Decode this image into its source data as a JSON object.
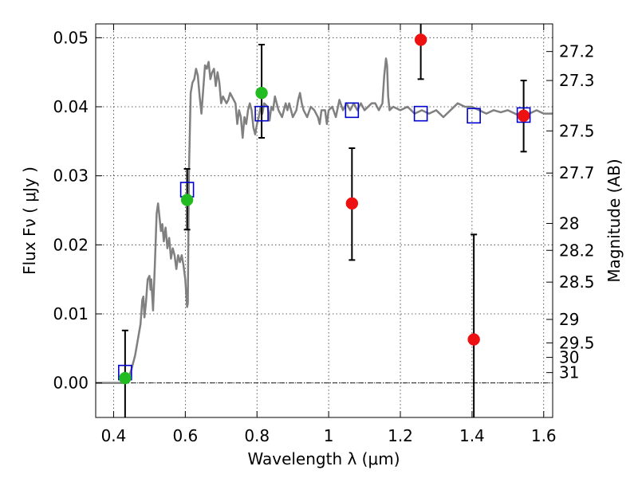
{
  "chart_data": {
    "type": "scatter",
    "xlabel": "Wavelength  λ (μm)",
    "ylabel": "Flux  Fν  ( μJy )",
    "y2label": "Magnitude (AB)",
    "xlim": [
      0.35,
      1.625
    ],
    "ylim": [
      -0.005,
      0.052
    ],
    "grid": true,
    "x_ticks": [
      0.4,
      0.6,
      0.8,
      1.0,
      1.2,
      1.4,
      1.6
    ],
    "x_tick_labels": [
      "0.4",
      "0.6",
      "0.8",
      "1",
      "1.2",
      "1.4",
      "1.6"
    ],
    "y_ticks": [
      0.0,
      0.01,
      0.02,
      0.03,
      0.04,
      0.05
    ],
    "y_tick_labels": [
      "0.00",
      "0.01",
      "0.02",
      "0.03",
      "0.04",
      "0.05"
    ],
    "y2_ticks": [
      {
        "label": "27.2",
        "flux": 0.048
      },
      {
        "label": "27.3",
        "flux": 0.0438
      },
      {
        "label": "27.5",
        "flux": 0.0365
      },
      {
        "label": "27.7",
        "flux": 0.0304
      },
      {
        "label": "28",
        "flux": 0.0231
      },
      {
        "label": "28.2",
        "flux": 0.0192
      },
      {
        "label": "28.5",
        "flux": 0.0146
      },
      {
        "label": "29",
        "flux": 0.0092
      },
      {
        "label": "29.5",
        "flux": 0.0058
      },
      {
        "label": "30",
        "flux": 0.0037
      },
      {
        "label": "31",
        "flux": 0.0015
      }
    ],
    "series": [
      {
        "kind": "spectrum",
        "color": "#808080",
        "points": [
          [
            0.35,
            0.0
          ],
          [
            0.43,
            0.0
          ],
          [
            0.44,
            0.0005
          ],
          [
            0.45,
            0.002
          ],
          [
            0.46,
            0.004
          ],
          [
            0.47,
            0.007
          ],
          [
            0.475,
            0.0085
          ],
          [
            0.48,
            0.012
          ],
          [
            0.483,
            0.0125
          ],
          [
            0.486,
            0.0095
          ],
          [
            0.49,
            0.0115
          ],
          [
            0.495,
            0.015
          ],
          [
            0.5,
            0.0155
          ],
          [
            0.503,
            0.0135
          ],
          [
            0.505,
            0.015
          ],
          [
            0.51,
            0.0105
          ],
          [
            0.515,
            0.017
          ],
          [
            0.52,
            0.0245
          ],
          [
            0.524,
            0.026
          ],
          [
            0.528,
            0.024
          ],
          [
            0.532,
            0.022
          ],
          [
            0.536,
            0.023
          ],
          [
            0.54,
            0.0205
          ],
          [
            0.545,
            0.0225
          ],
          [
            0.55,
            0.0195
          ],
          [
            0.555,
            0.021
          ],
          [
            0.56,
            0.018
          ],
          [
            0.565,
            0.0195
          ],
          [
            0.57,
            0.0185
          ],
          [
            0.575,
            0.0165
          ],
          [
            0.58,
            0.0185
          ],
          [
            0.585,
            0.0175
          ],
          [
            0.59,
            0.0185
          ],
          [
            0.595,
            0.017
          ],
          [
            0.6,
            0.015
          ],
          [
            0.603,
            0.0125
          ],
          [
            0.605,
            0.011
          ],
          [
            0.607,
            0.0115
          ],
          [
            0.61,
            0.03
          ],
          [
            0.615,
            0.042
          ],
          [
            0.62,
            0.0435
          ],
          [
            0.625,
            0.044
          ],
          [
            0.63,
            0.0455
          ],
          [
            0.635,
            0.0445
          ],
          [
            0.64,
            0.0415
          ],
          [
            0.645,
            0.039
          ],
          [
            0.65,
            0.0425
          ],
          [
            0.655,
            0.046
          ],
          [
            0.66,
            0.0455
          ],
          [
            0.665,
            0.0465
          ],
          [
            0.67,
            0.044
          ],
          [
            0.675,
            0.045
          ],
          [
            0.68,
            0.0455
          ],
          [
            0.685,
            0.043
          ],
          [
            0.69,
            0.045
          ],
          [
            0.695,
            0.0435
          ],
          [
            0.7,
            0.0405
          ],
          [
            0.705,
            0.0415
          ],
          [
            0.71,
            0.041
          ],
          [
            0.715,
            0.0405
          ],
          [
            0.72,
            0.041
          ],
          [
            0.725,
            0.042
          ],
          [
            0.73,
            0.0415
          ],
          [
            0.74,
            0.0405
          ],
          [
            0.745,
            0.0375
          ],
          [
            0.75,
            0.0395
          ],
          [
            0.755,
            0.0385
          ],
          [
            0.76,
            0.0355
          ],
          [
            0.765,
            0.0385
          ],
          [
            0.77,
            0.0375
          ],
          [
            0.775,
            0.0395
          ],
          [
            0.78,
            0.0405
          ],
          [
            0.785,
            0.0395
          ],
          [
            0.79,
            0.037
          ],
          [
            0.795,
            0.036
          ],
          [
            0.8,
            0.0375
          ],
          [
            0.805,
            0.0385
          ],
          [
            0.81,
            0.04
          ],
          [
            0.815,
            0.039
          ],
          [
            0.82,
            0.0405
          ],
          [
            0.83,
            0.04
          ],
          [
            0.835,
            0.038
          ],
          [
            0.84,
            0.04
          ],
          [
            0.845,
            0.0395
          ],
          [
            0.85,
            0.0415
          ],
          [
            0.86,
            0.0395
          ],
          [
            0.87,
            0.0385
          ],
          [
            0.88,
            0.0405
          ],
          [
            0.885,
            0.0395
          ],
          [
            0.89,
            0.0405
          ],
          [
            0.9,
            0.0385
          ],
          [
            0.91,
            0.0395
          ],
          [
            0.915,
            0.041
          ],
          [
            0.92,
            0.042
          ],
          [
            0.925,
            0.0405
          ],
          [
            0.93,
            0.0395
          ],
          [
            0.94,
            0.0385
          ],
          [
            0.95,
            0.04
          ],
          [
            0.96,
            0.0395
          ],
          [
            0.97,
            0.0385
          ],
          [
            0.975,
            0.0375
          ],
          [
            0.98,
            0.0395
          ],
          [
            0.99,
            0.0395
          ],
          [
            0.995,
            0.0375
          ],
          [
            1.0,
            0.0395
          ],
          [
            1.01,
            0.04
          ],
          [
            1.02,
            0.0385
          ],
          [
            1.03,
            0.041
          ],
          [
            1.04,
            0.0395
          ],
          [
            1.05,
            0.0405
          ],
          [
            1.06,
            0.0395
          ],
          [
            1.07,
            0.0405
          ],
          [
            1.08,
            0.0395
          ],
          [
            1.09,
            0.0405
          ],
          [
            1.1,
            0.0395
          ],
          [
            1.12,
            0.0405
          ],
          [
            1.13,
            0.0405
          ],
          [
            1.14,
            0.0395
          ],
          [
            1.15,
            0.0405
          ],
          [
            1.155,
            0.0445
          ],
          [
            1.16,
            0.047
          ],
          [
            1.163,
            0.046
          ],
          [
            1.166,
            0.0415
          ],
          [
            1.17,
            0.0395
          ],
          [
            1.18,
            0.04
          ],
          [
            1.2,
            0.0395
          ],
          [
            1.22,
            0.04
          ],
          [
            1.24,
            0.039
          ],
          [
            1.26,
            0.0395
          ],
          [
            1.28,
            0.039
          ],
          [
            1.3,
            0.0395
          ],
          [
            1.32,
            0.0385
          ],
          [
            1.34,
            0.0395
          ],
          [
            1.36,
            0.0405
          ],
          [
            1.38,
            0.04
          ],
          [
            1.4,
            0.04
          ],
          [
            1.42,
            0.0395
          ],
          [
            1.44,
            0.039
          ],
          [
            1.46,
            0.0395
          ],
          [
            1.48,
            0.0392
          ],
          [
            1.5,
            0.0395
          ],
          [
            1.52,
            0.039
          ],
          [
            1.54,
            0.0385
          ],
          [
            1.56,
            0.039
          ],
          [
            1.58,
            0.0395
          ],
          [
            1.6,
            0.039
          ],
          [
            1.625,
            0.039
          ]
        ]
      },
      {
        "kind": "squares",
        "color": "#0000cc",
        "points": [
          [
            0.432,
            0.0015
          ],
          [
            0.605,
            0.028
          ],
          [
            0.813,
            0.039
          ],
          [
            1.065,
            0.0395
          ],
          [
            1.257,
            0.039
          ],
          [
            1.405,
            0.0387
          ],
          [
            1.544,
            0.0388
          ]
        ]
      },
      {
        "kind": "green-circles",
        "color": "#22bb22",
        "points": [
          [
            0.432,
            0.0007
          ],
          [
            0.605,
            0.0265
          ],
          [
            0.813,
            0.042
          ]
        ]
      },
      {
        "kind": "red-circles",
        "color": "#ee1111",
        "points": [
          [
            1.065,
            0.026
          ],
          [
            1.257,
            0.0497
          ],
          [
            1.405,
            0.0063
          ],
          [
            1.544,
            0.0387
          ]
        ]
      },
      {
        "kind": "errorbars",
        "color": "#000000",
        "points": [
          {
            "x": 0.432,
            "lo": -0.0055,
            "hi": 0.0076
          },
          {
            "x": 0.605,
            "lo": 0.0222,
            "hi": 0.031
          },
          {
            "x": 0.813,
            "lo": 0.0355,
            "hi": 0.049
          },
          {
            "x": 1.065,
            "lo": 0.0178,
            "hi": 0.034
          },
          {
            "x": 1.257,
            "lo": 0.044,
            "hi": 0.0535
          },
          {
            "x": 1.405,
            "lo": -0.0055,
            "hi": 0.0215
          },
          {
            "x": 1.544,
            "lo": 0.0335,
            "hi": 0.0438
          }
        ]
      }
    ]
  }
}
